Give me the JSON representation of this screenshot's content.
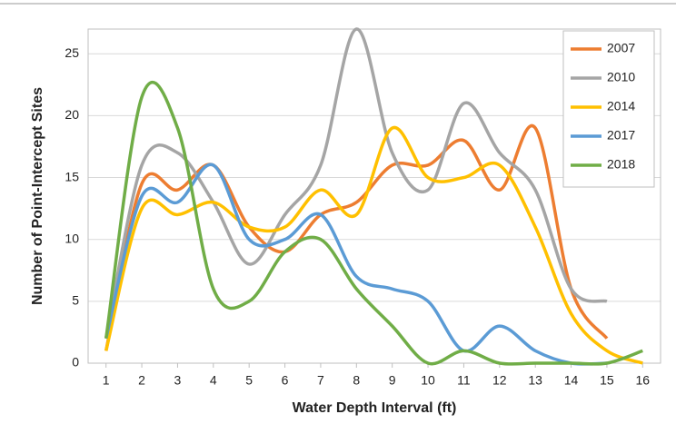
{
  "chart_data": {
    "type": "line",
    "smooth": true,
    "x_label": "Water Depth Interval (ft)",
    "y_label": "Number of Point-Intercept Sites",
    "x": [
      1,
      2,
      3,
      4,
      5,
      6,
      7,
      8,
      9,
      10,
      11,
      12,
      13,
      14,
      15,
      16
    ],
    "xlim": [
      0.5,
      16.5
    ],
    "xticks": [
      1,
      2,
      3,
      4,
      5,
      6,
      7,
      8,
      9,
      10,
      11,
      12,
      13,
      14,
      15,
      16
    ],
    "ylim": [
      0,
      27
    ],
    "yticks": [
      0,
      5,
      10,
      15,
      20,
      25
    ],
    "grid": true,
    "legend": "top-right",
    "series": [
      {
        "name": "2007",
        "color": "#ed7d31",
        "values": [
          1,
          14.5,
          14,
          16,
          11,
          9,
          12,
          13,
          16,
          16,
          18,
          14,
          19,
          6,
          2,
          null
        ]
      },
      {
        "name": "2010",
        "color": "#a5a5a5",
        "values": [
          2,
          16,
          17,
          13,
          8,
          12,
          16,
          27,
          17,
          14,
          21,
          17,
          14,
          6,
          5,
          null
        ]
      },
      {
        "name": "2014",
        "color": "#ffc000",
        "values": [
          1,
          12.5,
          12,
          13,
          11,
          11,
          14,
          12,
          19,
          15,
          15,
          16,
          11,
          4,
          1,
          0
        ]
      },
      {
        "name": "2017",
        "color": "#5b9bd5",
        "values": [
          2,
          13.5,
          13,
          16,
          10,
          10,
          12,
          7,
          6,
          5,
          1,
          3,
          1,
          0,
          0,
          null
        ]
      },
      {
        "name": "2018",
        "color": "#70ad47",
        "values": [
          2,
          21.5,
          19,
          6,
          5,
          9,
          10,
          6,
          3,
          0,
          1,
          0,
          0,
          0,
          0,
          1
        ]
      }
    ]
  }
}
